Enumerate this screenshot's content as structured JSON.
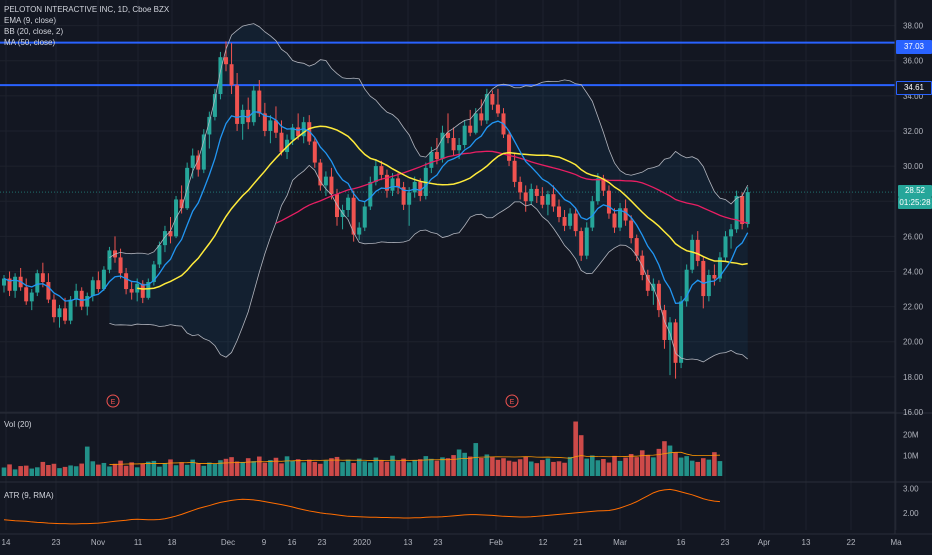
{
  "header": {
    "symbol_line": "PELOTON INTERACTIVE INC, 1D, Cboe BZX",
    "indicators": [
      "EMA (9, close)",
      "BB (20, close, 2)",
      "MA (50, close)"
    ]
  },
  "volume_pane": {
    "label": "Vol (20)",
    "ticks": [
      "20M",
      "10M"
    ]
  },
  "atr_pane": {
    "label": "ATR (9, RMA)",
    "ticks": [
      "3.00",
      "2.00"
    ]
  },
  "price_tags": {
    "resistance_high": "37.03",
    "resistance_low": "34.61",
    "last_price": "28.52",
    "countdown": "01:25:28"
  },
  "earnings_markers": [
    "E",
    "E"
  ],
  "colors": {
    "background": "#131722",
    "up": "#26a69a",
    "down": "#ef5350",
    "ema": "#2196f3",
    "ma50": "#ffeb3b",
    "bb_basis": "#e91e63",
    "bb_band": "#b2b5be",
    "atr": "#ff6d00",
    "hline": "#2962ff"
  },
  "chart_data": [
    {
      "type": "candlestick",
      "title": "PELOTON INTERACTIVE INC, 1D, Cboe BZX",
      "ylim": [
        16,
        39
      ],
      "y_ticks": [
        "38.00",
        "36.00",
        "34.00",
        "32.00",
        "30.00",
        "28.00",
        "26.00",
        "24.00",
        "22.00",
        "20.00",
        "18.00",
        "16.00"
      ],
      "x_ticks": [
        "14",
        "23",
        "Nov",
        "11",
        "18",
        "Dec",
        "9",
        "16",
        "23",
        "2020",
        "13",
        "23",
        "Feb",
        "12",
        "21",
        "Mar",
        "16",
        "23",
        "Apr",
        "13",
        "22",
        "Ma"
      ],
      "horizontal_lines": [
        37.03,
        34.61
      ],
      "candles": [
        [
          23.2,
          23.8,
          22.8,
          23.6
        ],
        [
          23.6,
          24.0,
          22.6,
          22.9
        ],
        [
          22.9,
          23.9,
          22.5,
          23.7
        ],
        [
          23.7,
          24.2,
          22.9,
          23.1
        ],
        [
          23.1,
          23.6,
          22.1,
          22.3
        ],
        [
          22.3,
          23.0,
          21.8,
          22.8
        ],
        [
          22.8,
          24.1,
          22.6,
          23.9
        ],
        [
          23.9,
          24.5,
          23.1,
          23.4
        ],
        [
          23.4,
          23.9,
          22.2,
          22.4
        ],
        [
          22.4,
          22.7,
          21.1,
          21.4
        ],
        [
          21.4,
          22.1,
          20.8,
          21.9
        ],
        [
          21.9,
          22.5,
          21.0,
          21.2
        ],
        [
          21.2,
          22.6,
          21.0,
          22.4
        ],
        [
          22.4,
          23.3,
          22.0,
          22.9
        ],
        [
          22.9,
          23.1,
          21.8,
          22.0
        ],
        [
          22.0,
          22.8,
          21.5,
          22.6
        ],
        [
          22.6,
          23.7,
          22.3,
          23.5
        ],
        [
          23.5,
          24.0,
          22.8,
          23.0
        ],
        [
          23.0,
          24.3,
          22.9,
          24.1
        ],
        [
          24.1,
          25.4,
          23.9,
          25.2
        ],
        [
          25.2,
          26.0,
          24.5,
          24.8
        ],
        [
          24.8,
          25.3,
          23.6,
          23.9
        ],
        [
          23.9,
          24.2,
          22.7,
          23.0
        ],
        [
          23.0,
          23.4,
          22.4,
          22.8
        ],
        [
          22.8,
          23.6,
          22.3,
          23.3
        ],
        [
          23.3,
          23.5,
          22.2,
          22.5
        ],
        [
          22.5,
          23.6,
          22.4,
          23.4
        ],
        [
          23.4,
          24.6,
          23.2,
          24.4
        ],
        [
          24.4,
          25.7,
          24.2,
          25.5
        ],
        [
          25.5,
          26.6,
          25.1,
          26.3
        ],
        [
          26.3,
          27.1,
          25.6,
          26.0
        ],
        [
          26.0,
          28.3,
          25.9,
          28.1
        ],
        [
          28.1,
          28.9,
          27.3,
          27.6
        ],
        [
          27.6,
          30.2,
          27.5,
          29.9
        ],
        [
          29.9,
          31.0,
          29.3,
          30.6
        ],
        [
          30.6,
          30.9,
          29.4,
          29.8
        ],
        [
          29.8,
          32.1,
          29.6,
          31.8
        ],
        [
          31.8,
          33.1,
          31.0,
          32.8
        ],
        [
          32.8,
          34.4,
          32.6,
          34.1
        ],
        [
          34.1,
          36.5,
          33.8,
          36.2
        ],
        [
          36.2,
          37.1,
          35.4,
          35.8
        ],
        [
          35.8,
          37.0,
          34.1,
          34.6
        ],
        [
          34.6,
          35.3,
          32.0,
          32.4
        ],
        [
          32.4,
          33.5,
          31.5,
          33.2
        ],
        [
          33.2,
          33.9,
          32.1,
          32.5
        ],
        [
          32.5,
          34.6,
          32.3,
          34.3
        ],
        [
          34.3,
          34.9,
          32.8,
          33.0
        ],
        [
          33.0,
          33.6,
          31.7,
          32.0
        ],
        [
          32.0,
          32.9,
          31.3,
          32.6
        ],
        [
          32.6,
          33.4,
          31.6,
          31.9
        ],
        [
          31.9,
          32.6,
          30.6,
          30.8
        ],
        [
          30.8,
          31.8,
          30.4,
          31.5
        ],
        [
          31.5,
          32.4,
          31.2,
          32.2
        ],
        [
          32.2,
          33.0,
          31.5,
          31.7
        ],
        [
          31.7,
          32.8,
          31.3,
          32.5
        ],
        [
          32.5,
          32.9,
          31.2,
          31.4
        ],
        [
          31.4,
          31.6,
          29.9,
          30.2
        ],
        [
          30.2,
          30.4,
          28.6,
          28.9
        ],
        [
          28.9,
          29.7,
          28.3,
          29.4
        ],
        [
          29.4,
          29.9,
          28.1,
          28.4
        ],
        [
          28.4,
          28.7,
          26.6,
          27.1
        ],
        [
          27.1,
          27.8,
          26.4,
          27.5
        ],
        [
          27.5,
          28.4,
          27.1,
          28.2
        ],
        [
          28.2,
          28.6,
          25.7,
          26.1
        ],
        [
          26.1,
          26.8,
          25.8,
          26.5
        ],
        [
          26.5,
          28.0,
          26.3,
          27.7
        ],
        [
          27.7,
          29.4,
          27.5,
          29.1
        ],
        [
          29.1,
          30.4,
          28.9,
          30.0
        ],
        [
          30.0,
          30.3,
          29.2,
          29.5
        ],
        [
          29.5,
          29.8,
          28.2,
          28.6
        ],
        [
          28.6,
          29.6,
          28.3,
          29.3
        ],
        [
          29.3,
          29.6,
          28.4,
          28.8
        ],
        [
          28.8,
          29.1,
          27.5,
          27.8
        ],
        [
          27.8,
          28.8,
          26.6,
          28.5
        ],
        [
          28.5,
          29.4,
          28.2,
          29.1
        ],
        [
          29.1,
          29.3,
          28.0,
          28.3
        ],
        [
          28.3,
          30.2,
          28.1,
          29.9
        ],
        [
          29.9,
          31.1,
          29.6,
          30.8
        ],
        [
          30.8,
          31.6,
          30.1,
          30.4
        ],
        [
          30.4,
          32.3,
          30.2,
          31.9
        ],
        [
          31.9,
          33.0,
          31.3,
          31.6
        ],
        [
          31.6,
          32.2,
          30.6,
          30.9
        ],
        [
          30.9,
          31.6,
          30.4,
          31.2
        ],
        [
          31.2,
          32.6,
          31.0,
          32.3
        ],
        [
          32.3,
          33.2,
          31.7,
          31.9
        ],
        [
          31.9,
          33.3,
          31.8,
          33.0
        ],
        [
          33.0,
          33.8,
          32.3,
          32.6
        ],
        [
          32.6,
          34.4,
          32.4,
          34.1
        ],
        [
          34.1,
          34.3,
          33.2,
          33.5
        ],
        [
          33.5,
          34.4,
          32.8,
          33.0
        ],
        [
          33.0,
          33.3,
          31.6,
          31.8
        ],
        [
          31.8,
          32.0,
          30.0,
          30.3
        ],
        [
          30.3,
          30.7,
          28.8,
          29.1
        ],
        [
          29.1,
          29.4,
          28.1,
          28.5
        ],
        [
          28.5,
          28.9,
          27.4,
          28.0
        ],
        [
          28.0,
          29.0,
          27.8,
          28.7
        ],
        [
          28.7,
          28.9,
          27.9,
          28.3
        ],
        [
          28.3,
          28.8,
          27.6,
          27.8
        ],
        [
          27.8,
          28.6,
          27.2,
          28.4
        ],
        [
          28.4,
          28.9,
          27.4,
          27.7
        ],
        [
          27.7,
          28.1,
          26.8,
          27.1
        ],
        [
          27.1,
          27.5,
          26.3,
          26.6
        ],
        [
          26.6,
          27.6,
          26.4,
          27.3
        ],
        [
          27.3,
          27.6,
          26.0,
          26.3
        ],
        [
          26.3,
          26.5,
          24.6,
          24.9
        ],
        [
          24.9,
          26.8,
          24.7,
          26.5
        ],
        [
          26.5,
          28.3,
          26.3,
          28.0
        ],
        [
          28.0,
          29.6,
          27.8,
          29.3
        ],
        [
          29.3,
          29.5,
          28.3,
          28.6
        ],
        [
          28.6,
          28.9,
          27.0,
          27.3
        ],
        [
          27.3,
          27.6,
          26.2,
          26.5
        ],
        [
          26.5,
          27.9,
          26.3,
          27.6
        ],
        [
          27.6,
          28.1,
          26.6,
          26.9
        ],
        [
          26.9,
          27.2,
          25.6,
          25.9
        ],
        [
          25.9,
          26.1,
          24.6,
          24.9
        ],
        [
          24.9,
          25.2,
          23.5,
          23.8
        ],
        [
          23.8,
          24.1,
          22.6,
          22.9
        ],
        [
          22.9,
          23.6,
          22.1,
          23.3
        ],
        [
          23.3,
          23.5,
          21.4,
          21.8
        ],
        [
          21.8,
          22.1,
          19.6,
          20.1
        ],
        [
          20.1,
          21.4,
          18.1,
          21.1
        ],
        [
          21.1,
          21.3,
          17.9,
          18.8
        ],
        [
          18.8,
          22.6,
          18.5,
          22.3
        ],
        [
          22.3,
          24.4,
          22.0,
          24.1
        ],
        [
          24.1,
          26.1,
          23.9,
          25.8
        ],
        [
          25.8,
          26.3,
          24.3,
          24.6
        ],
        [
          24.6,
          24.8,
          21.9,
          22.6
        ],
        [
          22.6,
          24.1,
          22.3,
          23.8
        ],
        [
          23.8,
          24.4,
          23.2,
          23.6
        ],
        [
          23.6,
          25.1,
          23.4,
          24.8
        ],
        [
          24.8,
          26.3,
          24.6,
          26.0
        ],
        [
          26.0,
          26.7,
          25.3,
          26.4
        ],
        [
          26.4,
          28.6,
          26.2,
          28.3
        ],
        [
          28.3,
          28.5,
          26.4,
          26.7
        ],
        [
          26.7,
          28.8,
          26.5,
          28.52
        ]
      ]
    },
    {
      "type": "bar",
      "title": "Vol (20)",
      "ylim": [
        0,
        28
      ],
      "unit": "M",
      "values": [
        4.1,
        5.6,
        3.2,
        4.8,
        5.0,
        3.6,
        4.2,
        6.8,
        5.3,
        5.9,
        3.8,
        4.4,
        5.1,
        4.7,
        6.0,
        14.2,
        7.1,
        5.5,
        6.3,
        4.6,
        5.9,
        7.4,
        4.9,
        6.6,
        4.2,
        5.8,
        6.9,
        7.3,
        4.5,
        6.1,
        8.0,
        5.2,
        6.7,
        5.4,
        7.9,
        6.2,
        4.9,
        6.5,
        5.8,
        7.6,
        8.3,
        9.1,
        7.0,
        6.8,
        8.6,
        7.2,
        9.4,
        6.4,
        7.7,
        8.8,
        6.1,
        9.5,
        7.3,
        8.1,
        6.6,
        7.9,
        6.8,
        5.9,
        7.4,
        8.6,
        9.2,
        6.7,
        7.9,
        6.3,
        8.4,
        7.1,
        6.5,
        8.9,
        7.6,
        6.9,
        9.8,
        7.2,
        8.4,
        6.6,
        7.5,
        8.1,
        9.6,
        8.3,
        7.4,
        9.0,
        8.6,
        10.1,
        12.8,
        11.2,
        9.4,
        15.9,
        8.7,
        10.4,
        9.1,
        7.8,
        8.6,
        7.4,
        6.9,
        8.1,
        9.3,
        7.0,
        6.2,
        7.7,
        8.5,
        6.8,
        7.1,
        6.4,
        9.2,
        26.3,
        19.7,
        8.4,
        9.9,
        7.6,
        8.2,
        6.5,
        9.7,
        7.3,
        8.9,
        10.6,
        9.1,
        12.4,
        10.2,
        9.0,
        13.1,
        16.8,
        14.7,
        11.3,
        8.9,
        9.6,
        7.4,
        6.8,
        8.6,
        7.9,
        11.5,
        7.2
      ]
    },
    {
      "type": "line",
      "title": "ATR (9, RMA)",
      "ylim": [
        1.3,
        3.1
      ],
      "values": [
        1.72,
        1.7,
        1.68,
        1.67,
        1.66,
        1.63,
        1.61,
        1.6,
        1.58,
        1.57,
        1.56,
        1.56,
        1.55,
        1.55,
        1.56,
        1.56,
        1.57,
        1.58,
        1.6,
        1.63,
        1.66,
        1.68,
        1.7,
        1.73,
        1.74,
        1.73,
        1.72,
        1.72,
        1.73,
        1.76,
        1.81,
        1.87,
        1.94,
        2.02,
        2.1,
        2.18,
        2.24,
        2.3,
        2.37,
        2.43,
        2.47,
        2.51,
        2.54,
        2.56,
        2.55,
        2.53,
        2.5,
        2.46,
        2.42,
        2.38,
        2.34,
        2.29,
        2.24,
        2.18,
        2.13,
        2.08,
        2.04,
        2.0,
        1.97,
        1.95,
        1.92,
        1.89,
        1.86,
        1.85,
        1.84,
        1.83,
        1.82,
        1.82,
        1.81,
        1.81,
        1.8,
        1.8,
        1.79,
        1.79,
        1.8,
        1.8,
        1.82,
        1.83,
        1.83,
        1.84,
        1.86,
        1.88,
        1.9,
        1.92,
        1.93,
        1.93,
        1.92,
        1.91,
        1.9,
        1.88,
        1.86,
        1.85,
        1.84,
        1.83,
        1.83,
        1.84,
        1.86,
        1.88,
        1.9,
        1.92,
        1.94,
        1.96,
        1.98,
        2.0,
        2.02,
        2.04,
        2.06,
        2.08,
        2.09,
        2.1,
        2.14,
        2.2,
        2.28,
        2.36,
        2.46,
        2.58,
        2.7,
        2.82,
        2.9,
        2.94,
        2.96,
        2.92,
        2.86,
        2.8,
        2.74,
        2.66,
        2.58,
        2.52,
        2.48,
        2.46
      ]
    }
  ]
}
